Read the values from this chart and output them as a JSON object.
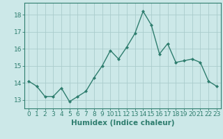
{
  "x": [
    0,
    1,
    2,
    3,
    4,
    5,
    6,
    7,
    8,
    9,
    10,
    11,
    12,
    13,
    14,
    15,
    16,
    17,
    18,
    19,
    20,
    21,
    22,
    23
  ],
  "y": [
    14.1,
    13.8,
    13.2,
    13.2,
    13.7,
    12.9,
    13.2,
    13.5,
    14.3,
    15.0,
    15.9,
    15.4,
    16.1,
    16.9,
    18.2,
    17.4,
    15.7,
    16.3,
    15.2,
    15.3,
    15.4,
    15.2,
    14.1,
    13.8
  ],
  "line_color": "#2e7d6e",
  "marker": "D",
  "marker_size": 2.0,
  "line_width": 1.0,
  "bg_color": "#cce8e8",
  "grid_color": "#aacccc",
  "xlabel": "Humidex (Indice chaleur)",
  "ylim": [
    12.5,
    18.7
  ],
  "xlim": [
    -0.5,
    23.5
  ],
  "yticks": [
    13,
    14,
    15,
    16,
    17,
    18
  ],
  "xticks": [
    0,
    1,
    2,
    3,
    4,
    5,
    6,
    7,
    8,
    9,
    10,
    11,
    12,
    13,
    14,
    15,
    16,
    17,
    18,
    19,
    20,
    21,
    22,
    23
  ],
  "tick_color": "#2e7d6e",
  "label_color": "#2e7d6e",
  "font_size": 6.5,
  "xlabel_fontsize": 7.5
}
